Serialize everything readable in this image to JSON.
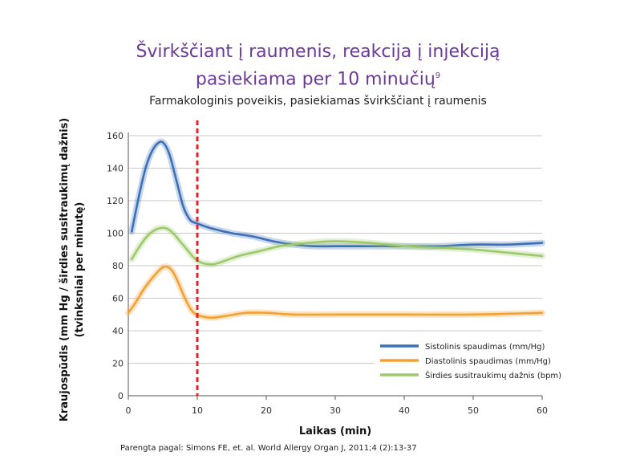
{
  "title_line1": "Švirkščiant į raumenis, reakcija į injekciją",
  "title_line2": "pasiekiama per 10 minučių",
  "title_sup": "9",
  "subtitle": "Farmakologinis poveikis, pasiekiamas švirkščiant į raumenis",
  "source": "Parengta pagal: Simons FE, et. al. World Allergy Organ J, 2011;4 (2):13-37",
  "chart_data": {
    "type": "line",
    "xlabel": "Laikas (min)",
    "ylabel_line1": "Kraujospūdis (mm Hg / širdies susitraukimų dažnis)",
    "ylabel_line2": "(tvinksniai per minutę)",
    "xlim": [
      0,
      60
    ],
    "ylim": [
      0,
      160
    ],
    "xticks": [
      0,
      10,
      20,
      30,
      40,
      50,
      60
    ],
    "yticks": [
      0,
      20,
      40,
      60,
      80,
      100,
      120,
      140,
      160
    ],
    "grid": true,
    "marker_line_x": 10,
    "legend_position": "lower-right",
    "series": [
      {
        "name": "Sistolinis spaudimas (mm/Hg)",
        "color": "#3b6fb6",
        "x": [
          0.5,
          1.5,
          2.5,
          3.5,
          4.5,
          5.2,
          6,
          7,
          8,
          9,
          10,
          12,
          15,
          18,
          21,
          24,
          27,
          30,
          35,
          40,
          45,
          50,
          55,
          60
        ],
        "y": [
          101,
          122,
          140,
          151,
          156,
          155,
          148,
          132,
          116,
          108,
          106,
          103,
          100,
          98,
          95,
          93,
          92,
          92,
          92,
          92,
          92,
          93,
          93,
          94
        ]
      },
      {
        "name": "Diastolinis spaudimas (mm/Hg)",
        "color": "#f5a033",
        "x": [
          0,
          1,
          2,
          3,
          4,
          5,
          5.8,
          6.5,
          7.2,
          8,
          8.8,
          9.5,
          10.5,
          12,
          14,
          17,
          20,
          24,
          30,
          40,
          50,
          60
        ],
        "y": [
          51,
          57,
          64,
          70,
          75,
          79,
          79,
          76,
          70,
          62,
          55,
          51,
          49,
          48,
          49,
          51,
          51,
          50,
          50,
          50,
          50,
          51
        ]
      },
      {
        "name": "Širdies susitraukimų dažnis (bpm)",
        "color": "#9ec96b",
        "x": [
          0.5,
          1.5,
          2.5,
          3.5,
          4.5,
          5.5,
          6.5,
          7.5,
          8.5,
          9.5,
          10.5,
          11.5,
          12.5,
          14,
          16,
          19,
          22,
          26,
          30,
          35,
          40,
          45,
          50,
          55,
          60
        ],
        "y": [
          84,
          91,
          97,
          101,
          103,
          103,
          100,
          95,
          90,
          85,
          82,
          81,
          81,
          83,
          86,
          89,
          92,
          94,
          95,
          94,
          92,
          91,
          90,
          88,
          86
        ]
      }
    ]
  }
}
